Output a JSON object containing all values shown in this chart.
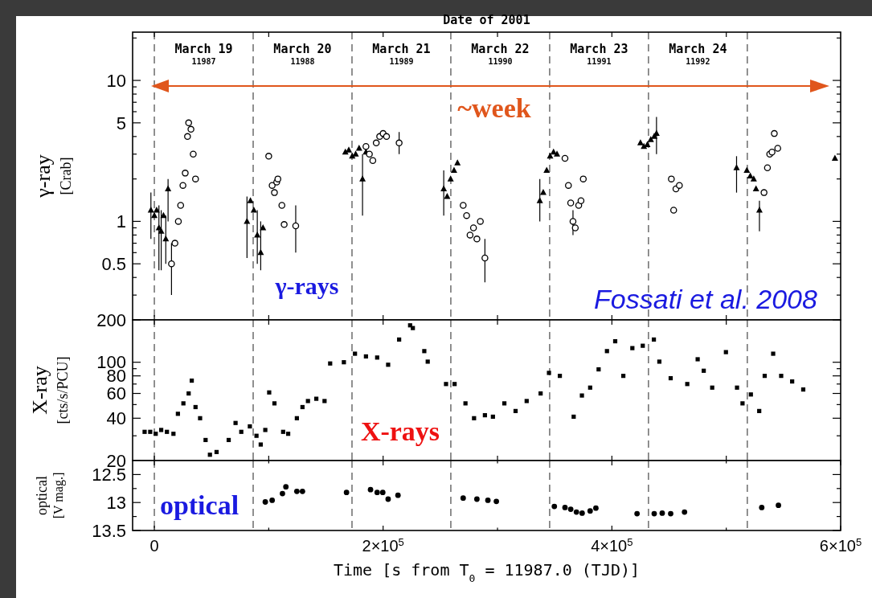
{
  "chart_data": [
    {
      "type": "scatter",
      "ylabel": "γ-ray [Crab]",
      "x2label": "Date of 2001",
      "log": true,
      "grid": false,
      "tick_labels": "y",
      "xlim": [
        -19000,
        600000
      ],
      "xticks": [
        {
          "value": 0,
          "label": null
        },
        {
          "value": 100000,
          "label": null
        },
        {
          "value": 200000,
          "label": null
        },
        {
          "value": 300000,
          "label": null
        },
        {
          "value": 400000,
          "label": null
        },
        {
          "value": 500000,
          "label": null
        }
      ],
      "ylim": [
        0.2,
        22
      ],
      "yticks": [
        {
          "value": 0.2,
          "label": null
        },
        {
          "value": 0.3,
          "label": null
        },
        {
          "value": 0.4,
          "label": null
        },
        0.5,
        {
          "value": 0.6,
          "label": null
        },
        {
          "value": 0.7,
          "label": null
        },
        {
          "value": 0.8,
          "label": null
        },
        {
          "value": 0.9,
          "label": null
        },
        1,
        {
          "value": 2,
          "label": null
        },
        {
          "value": 3,
          "label": null
        },
        {
          "value": 4,
          "label": null
        },
        5,
        {
          "value": 6,
          "label": null
        },
        {
          "value": 7,
          "label": null
        },
        {
          "value": 8,
          "label": null
        },
        {
          "value": 9,
          "label": null
        },
        10,
        {
          "value": 20,
          "label": null
        }
      ],
      "ref_lines": [
        {
          "axis": "x",
          "value": 0,
          "line_style": "dashed"
        },
        {
          "axis": "x",
          "value": 86400,
          "line_style": "dashed"
        },
        {
          "axis": "x",
          "value": 172800,
          "line_style": "dashed"
        },
        {
          "axis": "x",
          "value": 259200,
          "line_style": "dashed"
        },
        {
          "axis": "x",
          "value": 345600,
          "line_style": "dashed"
        },
        {
          "axis": "x",
          "value": 432000,
          "line_style": "dashed"
        },
        {
          "axis": "x",
          "value": 518400,
          "line_style": "dashed"
        }
      ],
      "annotations": [
        "~week",
        "γ-rays",
        "Fossati et al. 2008",
        "March 19",
        "11987",
        "March 20",
        "11988",
        "March 21",
        "11989",
        "March 22",
        "11990",
        "March 23",
        "11991",
        "March 24",
        "11992"
      ],
      "series": [
        {
          "color": "#000000",
          "marker": "triangle",
          "x": [
            -3000,
            0,
            2000,
            4000,
            6000,
            8000,
            10000,
            12000,
            81000,
            84000,
            87000,
            90000,
            93000,
            95000,
            167000,
            170000,
            173000,
            176000,
            179000,
            182000,
            185000,
            253000,
            256000,
            259000,
            262000,
            265000,
            337000,
            340000,
            343000,
            346000,
            349000,
            352000,
            425000,
            428000,
            431000,
            434000,
            437000,
            439000,
            509000,
            518000,
            521000,
            524000,
            526000,
            529000,
            595000
          ],
          "values": [
            1.2,
            1.1,
            1.2,
            0.9,
            0.85,
            1.1,
            0.75,
            1.7,
            1.0,
            1.4,
            1.2,
            0.8,
            0.6,
            0.9,
            3.1,
            3.2,
            2.9,
            3.0,
            3.3,
            2.0,
            3.1,
            1.7,
            1.5,
            2.0,
            2.3,
            2.6,
            1.4,
            1.6,
            2.3,
            2.9,
            3.1,
            3.0,
            3.6,
            3.4,
            3.5,
            3.8,
            4.0,
            4.2,
            2.4,
            2.3,
            2.1,
            2.0,
            1.7,
            1.2,
            2.8
          ],
          "errors": [
            [
              0.75,
              1.6
            ],
            null,
            null,
            [
              0.45,
              1.3
            ],
            [
              0.45,
              1.2
            ],
            null,
            [
              0.5,
              1.1
            ],
            [
              1.0,
              2.0
            ],
            [
              0.55,
              1.5
            ],
            null,
            null,
            [
              0.5,
              1.2
            ],
            [
              0.45,
              1.0
            ],
            null,
            null,
            null,
            null,
            null,
            null,
            [
              1.1,
              3.0
            ],
            null,
            [
              1.1,
              2.3
            ],
            null,
            null,
            null,
            null,
            [
              1.0,
              2.0
            ],
            null,
            null,
            null,
            null,
            null,
            null,
            null,
            null,
            null,
            null,
            [
              3.0,
              5.5
            ],
            [
              1.6,
              2.9
            ],
            null,
            null,
            null,
            null,
            [
              0.85,
              1.4
            ],
            null
          ]
        },
        {
          "color": "#000000",
          "marker": "circle",
          "x": [
            15000,
            18000,
            21000,
            23000,
            25000,
            27000,
            29000,
            30000,
            32000,
            34000,
            36000,
            100000,
            103000,
            105000,
            107000,
            108000,
            111500,
            113500,
            123600,
            185000,
            188000,
            191000,
            194000,
            197000,
            200000,
            203000,
            214000,
            270000,
            273000,
            276000,
            279000,
            282000,
            285000,
            289000,
            359000,
            362000,
            364000,
            366000,
            368000,
            371000,
            373000,
            375000,
            452000,
            454000,
            456000,
            459000,
            533000,
            536000,
            538000,
            540000,
            542000,
            545000
          ],
          "values": [
            0.5,
            0.7,
            1.0,
            1.3,
            1.8,
            2.2,
            4.0,
            5.0,
            4.5,
            3.0,
            2.0,
            2.9,
            1.8,
            1.6,
            1.9,
            2.0,
            1.3,
            0.95,
            0.93,
            3.4,
            3.0,
            2.7,
            3.6,
            4.0,
            4.2,
            4.0,
            3.6,
            1.3,
            1.1,
            0.8,
            0.9,
            0.75,
            1.0,
            0.55,
            2.8,
            1.8,
            1.35,
            1.0,
            0.9,
            1.3,
            1.4,
            2.0,
            2.0,
            1.2,
            1.7,
            1.8,
            1.6,
            2.4,
            3.0,
            3.1,
            4.2,
            3.3
          ],
          "errors": [
            [
              0.3,
              0.7
            ],
            null,
            null,
            null,
            null,
            null,
            null,
            null,
            null,
            null,
            null,
            null,
            null,
            null,
            null,
            null,
            null,
            null,
            [
              0.6,
              1.3
            ],
            null,
            null,
            null,
            null,
            null,
            null,
            null,
            [
              3.0,
              4.3
            ],
            null,
            null,
            null,
            null,
            null,
            null,
            [
              0.37,
              0.75
            ],
            null,
            null,
            null,
            [
              0.8,
              1.2
            ],
            null,
            null,
            null,
            null,
            null,
            null,
            null,
            null,
            null,
            null,
            null,
            null,
            null,
            null
          ]
        }
      ]
    },
    {
      "type": "scatter",
      "ylabel": "X-ray [cts/s/PCU]",
      "log": true,
      "grid": false,
      "tick_labels": "y",
      "xlim": [
        -19000,
        600000
      ],
      "xticks": [
        {
          "value": 0,
          "label": null
        },
        {
          "value": 100000,
          "label": null
        },
        {
          "value": 200000,
          "label": null
        },
        {
          "value": 300000,
          "label": null
        },
        {
          "value": 400000,
          "label": null
        },
        {
          "value": 500000,
          "label": null
        }
      ],
      "ylim": [
        20,
        200
      ],
      "yticks": [
        20,
        {
          "value": 30,
          "label": null
        },
        40,
        {
          "value": 50,
          "label": null
        },
        60,
        {
          "value": 70,
          "label": null
        },
        80,
        {
          "value": 90,
          "label": null
        },
        100,
        200
      ],
      "ref_lines": [
        {
          "axis": "x",
          "value": 0,
          "line_style": "dashed"
        },
        {
          "axis": "x",
          "value": 86400,
          "line_style": "dashed"
        },
        {
          "axis": "x",
          "value": 172800,
          "line_style": "dashed"
        },
        {
          "axis": "x",
          "value": 259200,
          "line_style": "dashed"
        },
        {
          "axis": "x",
          "value": 345600,
          "line_style": "dashed"
        },
        {
          "axis": "x",
          "value": 432000,
          "line_style": "dashed"
        },
        {
          "axis": "x",
          "value": 518400,
          "line_style": "dashed"
        }
      ],
      "annotations": [
        "X-rays"
      ],
      "series": [
        {
          "color": "#000000",
          "marker": "square",
          "x": [
            -8500,
            -3600,
            1200,
            6000,
            11000,
            16700,
            20600,
            25400,
            30000,
            32700,
            36000,
            40000,
            44800,
            48600,
            54400,
            65000,
            71000,
            76000,
            83500,
            89300,
            93000,
            97000,
            100400,
            105000,
            112600,
            117000,
            124600,
            129500,
            134300,
            141600,
            148800,
            153700,
            165700,
            175400,
            185000,
            194800,
            204400,
            214000,
            223600,
            226000,
            236000,
            239000,
            255000,
            262500,
            272000,
            279500,
            289000,
            296000,
            306000,
            315800,
            325500,
            337700,
            345000,
            354500,
            366600,
            373800,
            381000,
            388400,
            395700,
            402900,
            410000,
            417900,
            427000,
            436700,
            441500,
            451400,
            465900,
            475000,
            480300,
            487700,
            499700,
            509400,
            514200,
            521500,
            528800,
            533600,
            541000,
            548000,
            557600,
            567300
          ],
          "values": [
            32,
            32,
            31,
            33,
            32,
            31,
            43,
            51,
            60,
            74,
            48,
            40,
            28,
            22,
            23,
            28,
            37,
            32,
            35,
            30,
            26,
            33,
            61,
            51,
            32,
            31,
            40,
            48,
            53,
            55,
            53,
            98,
            100,
            115,
            110,
            108,
            96,
            145,
            183,
            175,
            120,
            101,
            70,
            70,
            51,
            40,
            42,
            41,
            51,
            45,
            53,
            60,
            84,
            80,
            41,
            58,
            66,
            89,
            120,
            141,
            80,
            126,
            131,
            145,
            101,
            77,
            70,
            105,
            87,
            66,
            118,
            66,
            51,
            59,
            45,
            80,
            115,
            80,
            73,
            64
          ]
        }
      ]
    },
    {
      "type": "scatter",
      "ylabel": "optical [V mag.]",
      "xlabel": "Time [s from T$_{0}$ = 11987.0 (TJD)]",
      "grid": false,
      "xlim": [
        -19000,
        600000
      ],
      "xticks": [
        0,
        {
          "value": 100000,
          "label": null
        },
        {
          "value": 200000,
          "label": "2×10$^{5}$"
        },
        {
          "value": 300000,
          "label": null
        },
        {
          "value": 400000,
          "label": "4×10$^{5}$"
        },
        {
          "value": 500000,
          "label": null
        },
        {
          "value": 600000,
          "label": "6×10$^{5}$"
        }
      ],
      "ylim": [
        13.5,
        12.25
      ],
      "yticks": [
        12.5,
        {
          "value": 12.75,
          "label": null
        },
        13,
        {
          "value": 13.25,
          "label": null
        },
        13.5
      ],
      "ref_lines": [
        {
          "axis": "x",
          "value": 0,
          "line_style": "dashed"
        },
        {
          "axis": "x",
          "value": 86400,
          "line_style": "dashed"
        },
        {
          "axis": "x",
          "value": 172800,
          "line_style": "dashed"
        },
        {
          "axis": "x",
          "value": 259200,
          "line_style": "dashed"
        },
        {
          "axis": "x",
          "value": 345600,
          "line_style": "dashed"
        },
        {
          "axis": "x",
          "value": 432000,
          "line_style": "dashed"
        },
        {
          "axis": "x",
          "value": 518400,
          "line_style": "dashed"
        }
      ],
      "annotations": [
        "optical"
      ],
      "series": [
        {
          "color": "#000000",
          "marker": "circle",
          "x": [
            97000,
            103000,
            112000,
            115000,
            124600,
            129500,
            168000,
            189000,
            194800,
            199700,
            204400,
            213000,
            270000,
            282000,
            291600,
            299000,
            349700,
            359000,
            364000,
            369000,
            374000,
            381000,
            386000,
            422000,
            437000,
            444000,
            451400,
            463500,
            531000,
            545600
          ],
          "values": [
            12.99,
            12.96,
            12.84,
            12.72,
            12.8,
            12.8,
            12.82,
            12.77,
            12.82,
            12.82,
            12.94,
            12.87,
            12.92,
            12.94,
            12.96,
            12.98,
            13.07,
            13.09,
            13.12,
            13.17,
            13.19,
            13.15,
            13.1,
            13.2,
            13.2,
            13.19,
            13.2,
            13.17,
            13.09,
            13.05
          ]
        }
      ]
    }
  ]
}
